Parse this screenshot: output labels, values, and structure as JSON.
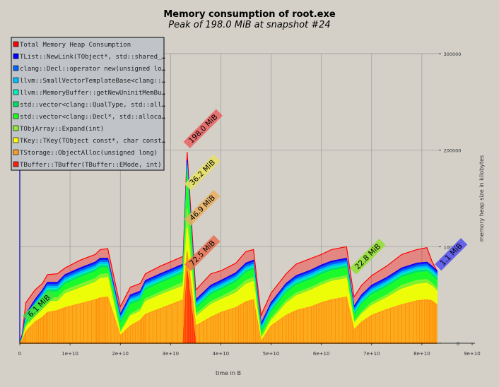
{
  "chart_data": {
    "type": "area",
    "title": "Memory consumption of root.exe",
    "subtitle": "Peak of 198.0 MiB at snapshot #24",
    "xlabel": "time in B",
    "ylabel": "memory heap size in kilobytes",
    "xlim": [
      0,
      90000000000
    ],
    "ylim": [
      0,
      300000
    ],
    "x_ticks": [
      0,
      10000000000,
      20000000000,
      30000000000,
      40000000000,
      50000000000,
      60000000000,
      70000000000,
      80000000000,
      90000000000
    ],
    "x_tick_labels": [
      "0",
      "1e+10",
      "2e+10",
      "3e+10",
      "4e+10",
      "5e+10",
      "6e+10",
      "7e+10",
      "8e+10",
      "9e+10"
    ],
    "y_ticks": [
      0,
      100000,
      200000,
      300000
    ],
    "y_tick_labels": [
      "0",
      "100000",
      "200000",
      "300000"
    ],
    "grid": true,
    "legend_position": "top-left",
    "x": [
      0,
      500000000,
      1200000000,
      3000000000,
      4500000000,
      5500000000,
      7500000000,
      9000000000,
      12000000000,
      15000000000,
      16000000000,
      17500000000,
      20000000000,
      22000000000,
      24000000000,
      25000000000,
      28000000000,
      32500000000,
      33300000000,
      35000000000,
      38000000000,
      40000000000,
      43000000000,
      45000000000,
      46500000000,
      48000000000,
      50000000000,
      53000000000,
      55000000000,
      58000000000,
      60000000000,
      62000000000,
      65000000000,
      66500000000,
      68000000000,
      70000000000,
      73000000000,
      76000000000,
      79000000000,
      81000000000,
      82000000000,
      83000000000
    ],
    "series": [
      {
        "name": "Total Memory Heap Consumption",
        "color": "#ff0000",
        "values": [
          0,
          10000,
          42000,
          55000,
          62000,
          71000,
          72000,
          78000,
          86000,
          92000,
          97000,
          98000,
          38000,
          58000,
          62000,
          72000,
          80000,
          90000,
          198000,
          55000,
          72000,
          75000,
          83000,
          95000,
          97000,
          29000,
          52000,
          72000,
          82000,
          88000,
          92000,
          97000,
          100000,
          48000,
          60000,
          70000,
          80000,
          92000,
          97000,
          99000,
          85000,
          75000
        ]
      },
      {
        "name": "TList::NewLink(TObject*, std::shared_…",
        "color": "#0000ff",
        "values": [
          0,
          8000,
          30000,
          45000,
          55000,
          63000,
          63000,
          71000,
          78000,
          84000,
          88000,
          88000,
          30000,
          50000,
          54000,
          65000,
          72000,
          82000,
          190000,
          45000,
          60000,
          65000,
          73000,
          83000,
          86000,
          20000,
          42000,
          62000,
          70000,
          76000,
          81000,
          85000,
          88000,
          38000,
          50000,
          60000,
          68000,
          78000,
          83000,
          84000,
          80000,
          75000
        ]
      },
      {
        "name": "clang::Decl::operator new(unsigned lo…",
        "color": "#0066ff",
        "values": [
          0,
          7000,
          28000,
          43000,
          53000,
          61000,
          61000,
          69000,
          76000,
          82000,
          86000,
          86000,
          28000,
          48000,
          52000,
          63000,
          70000,
          80000,
          187000,
          43000,
          58000,
          63000,
          71000,
          81000,
          84000,
          18000,
          40000,
          60000,
          68000,
          74000,
          79000,
          83000,
          86000,
          36000,
          48000,
          58000,
          66000,
          76000,
          81000,
          82000,
          78000,
          73000
        ]
      },
      {
        "name": "llvm::SmallVectorTemplateBase<clang::…",
        "color": "#00bfff",
        "values": [
          0,
          6000,
          26000,
          41000,
          51000,
          59000,
          59000,
          67000,
          74000,
          80000,
          84000,
          84000,
          26000,
          46000,
          50000,
          61000,
          68000,
          78000,
          184000,
          41000,
          56000,
          61000,
          69000,
          79000,
          82000,
          16000,
          38000,
          58000,
          66000,
          72000,
          77000,
          81000,
          84000,
          34000,
          46000,
          56000,
          64000,
          74000,
          79000,
          80000,
          76000,
          71000
        ]
      },
      {
        "name": "llvm::MemoryBuffer::getNewUninitMemBu…",
        "color": "#00f0c0",
        "values": [
          0,
          5500,
          24000,
          39000,
          49000,
          57000,
          57000,
          65000,
          72000,
          78000,
          82000,
          82000,
          24000,
          44000,
          48000,
          59000,
          66000,
          76000,
          181000,
          39000,
          54000,
          59000,
          67000,
          77000,
          80000,
          14000,
          36000,
          56000,
          64000,
          70000,
          75000,
          79000,
          82000,
          32000,
          44000,
          54000,
          62000,
          72000,
          77000,
          78000,
          74000,
          69000
        ]
      },
      {
        "name": "std::vector<clang::QualType, std::all…",
        "color": "#00e060",
        "values": [
          0,
          5000,
          22000,
          37000,
          47000,
          55000,
          55000,
          63000,
          70000,
          76000,
          80000,
          80000,
          22000,
          42000,
          46000,
          57000,
          64000,
          74000,
          178000,
          37000,
          52000,
          57000,
          65000,
          75000,
          78000,
          12000,
          34000,
          54000,
          62000,
          68000,
          73000,
          77000,
          80000,
          30000,
          42000,
          52000,
          60000,
          70000,
          75000,
          76000,
          72000,
          67000
        ]
      },
      {
        "name": "std::vector<clang::Decl*, std::alloca…",
        "color": "#20ff20",
        "values": [
          0,
          4500,
          20000,
          35000,
          45000,
          53000,
          53000,
          61000,
          68000,
          74000,
          78000,
          78000,
          20000,
          40000,
          44000,
          55000,
          62000,
          72000,
          175000,
          35000,
          50000,
          55000,
          63000,
          73000,
          76000,
          10000,
          32000,
          52000,
          60000,
          66000,
          71000,
          75000,
          78000,
          28000,
          40000,
          50000,
          58000,
          68000,
          73000,
          74000,
          70000,
          65000
        ]
      },
      {
        "name": "TObjArray::Expand(int)",
        "color": "#90f030",
        "values": [
          0,
          4000,
          18000,
          31000,
          40000,
          47000,
          47000,
          55000,
          61000,
          67000,
          71000,
          72000,
          12000,
          30000,
          36000,
          46000,
          53000,
          63000,
          140000,
          30000,
          43000,
          48000,
          56000,
          65000,
          68000,
          6000,
          26000,
          44000,
          52000,
          58000,
          63000,
          67000,
          70000,
          22000,
          32000,
          42000,
          50000,
          60000,
          65000,
          66000,
          62000,
          57000
        ]
      },
      {
        "name": "TKey::TKey(TObject const*, char const…",
        "color": "#ffff00",
        "values": [
          0,
          3500,
          16000,
          28000,
          36000,
          43000,
          43000,
          51000,
          57000,
          63000,
          67000,
          68000,
          10000,
          28000,
          33000,
          43000,
          50000,
          59000,
          120000,
          27000,
          40000,
          45000,
          52000,
          61000,
          64000,
          4000,
          23000,
          41000,
          49000,
          55000,
          60000,
          64000,
          67000,
          20000,
          30000,
          39000,
          47000,
          56000,
          61000,
          62000,
          59000,
          54000
        ]
      },
      {
        "name": "TStorage::ObjectAlloc(unsigned long)",
        "color": "#ff9c20",
        "values": [
          0,
          3000,
          12000,
          22000,
          27000,
          32000,
          34000,
          37000,
          41000,
          45000,
          47000,
          48000,
          8000,
          18000,
          24000,
          30000,
          36000,
          45000,
          95000,
          18000,
          27000,
          32000,
          37000,
          43000,
          45000,
          2000,
          18000,
          29000,
          34000,
          38000,
          42000,
          45000,
          48000,
          14000,
          22000,
          29000,
          35000,
          40000,
          44000,
          45000,
          44000,
          40000
        ]
      },
      {
        "name": "TBuffer::TBuffer(TBuffer::EMode, int)",
        "color": "#ff2010",
        "values": [
          0,
          0,
          0,
          0,
          0,
          0,
          0,
          0,
          0,
          0,
          0,
          0,
          0,
          0,
          0,
          0,
          0,
          0,
          75000,
          0,
          0,
          0,
          0,
          0,
          0,
          0,
          0,
          0,
          0,
          0,
          0,
          0,
          0,
          0,
          0,
          0,
          0,
          0,
          0,
          0,
          0,
          0
        ]
      }
    ],
    "annotations": [
      {
        "text": "198.0 MiB",
        "x": 33300000000,
        "y": 198000,
        "color": "#e86060"
      },
      {
        "text": "36.2 MiB",
        "x": 33300000000,
        "y": 160000,
        "color": "#e8e060"
      },
      {
        "text": "46.9 MiB",
        "x": 33300000000,
        "y": 122000,
        "color": "#e8b060"
      },
      {
        "text": "72.5 MiB",
        "x": 33300000000,
        "y": 75000,
        "color": "#e87050"
      },
      {
        "text": "6.1 MiB",
        "x": 1000000000,
        "y": 22000,
        "color": "#40e040"
      },
      {
        "text": "22.8 MiB",
        "x": 66500000000,
        "y": 73000,
        "color": "#90e030"
      },
      {
        "text": "1.1 MiB",
        "x": 83000000000,
        "y": 75000,
        "color": "#5050f0"
      }
    ]
  }
}
